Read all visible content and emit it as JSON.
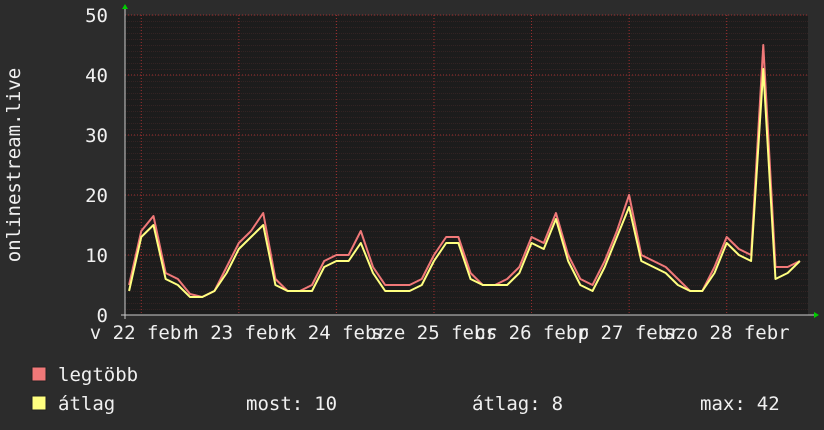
{
  "chart_data": {
    "type": "line",
    "ylabel": "onlinestream.live",
    "x": [
      -3,
      0,
      3,
      6,
      9,
      12,
      15,
      18,
      21,
      24,
      27,
      30,
      33,
      36,
      39,
      42,
      45,
      48,
      51,
      54,
      57,
      60,
      63,
      66,
      69,
      72,
      75,
      78,
      81,
      84,
      87,
      90,
      93,
      96,
      99,
      102,
      105,
      108,
      111,
      114,
      117,
      120,
      123,
      126,
      129,
      132,
      135,
      138,
      141,
      144,
      147,
      150,
      153,
      156,
      159,
      162
    ],
    "xlim": [
      -4,
      164
    ],
    "xticks": [
      {
        "value": 0,
        "label": "v 22 febr"
      },
      {
        "value": 24,
        "label": "h 23 febr"
      },
      {
        "value": 48,
        "label": "k 24 febr"
      },
      {
        "value": 72,
        "label": "sze 25 febr"
      },
      {
        "value": 96,
        "label": "cs 26 febr"
      },
      {
        "value": 120,
        "label": "p 27 febr"
      },
      {
        "value": 144,
        "label": "szo 28 febr"
      }
    ],
    "ylim": [
      0,
      50
    ],
    "yticks": [
      0,
      10,
      20,
      30,
      40,
      50
    ],
    "grid": true,
    "series": [
      {
        "name": "legtöbb",
        "color": "#f07878",
        "values": [
          5,
          14,
          16.5,
          7,
          6,
          3.5,
          3,
          4,
          8,
          12,
          14,
          17,
          6,
          4,
          4,
          5,
          9,
          10,
          10,
          14,
          8,
          5,
          5,
          5,
          6,
          10,
          13,
          13,
          7,
          5,
          5,
          6,
          8,
          13,
          12,
          17,
          10,
          6,
          5,
          9,
          14,
          20,
          10,
          9,
          8,
          6,
          4,
          4,
          8,
          13,
          11,
          10,
          45,
          8,
          8,
          9
        ]
      },
      {
        "name": "átlag",
        "color": "#ffff80",
        "values": [
          4,
          13,
          15,
          6,
          5,
          3,
          3,
          4,
          7,
          11,
          13,
          15,
          5,
          4,
          4,
          4,
          8,
          9,
          9,
          12,
          7,
          4,
          4,
          4,
          5,
          9,
          12,
          12,
          6,
          5,
          5,
          5,
          7,
          12,
          11,
          16,
          9,
          5,
          4,
          8,
          13,
          18,
          9,
          8,
          7,
          5,
          4,
          4,
          7,
          12,
          10,
          9,
          41,
          6,
          7,
          9
        ]
      }
    ],
    "stats": [
      {
        "label": "most:",
        "value": 10
      },
      {
        "label": "átlag:",
        "value": 8
      },
      {
        "label": "max:",
        "value": 42
      }
    ]
  }
}
